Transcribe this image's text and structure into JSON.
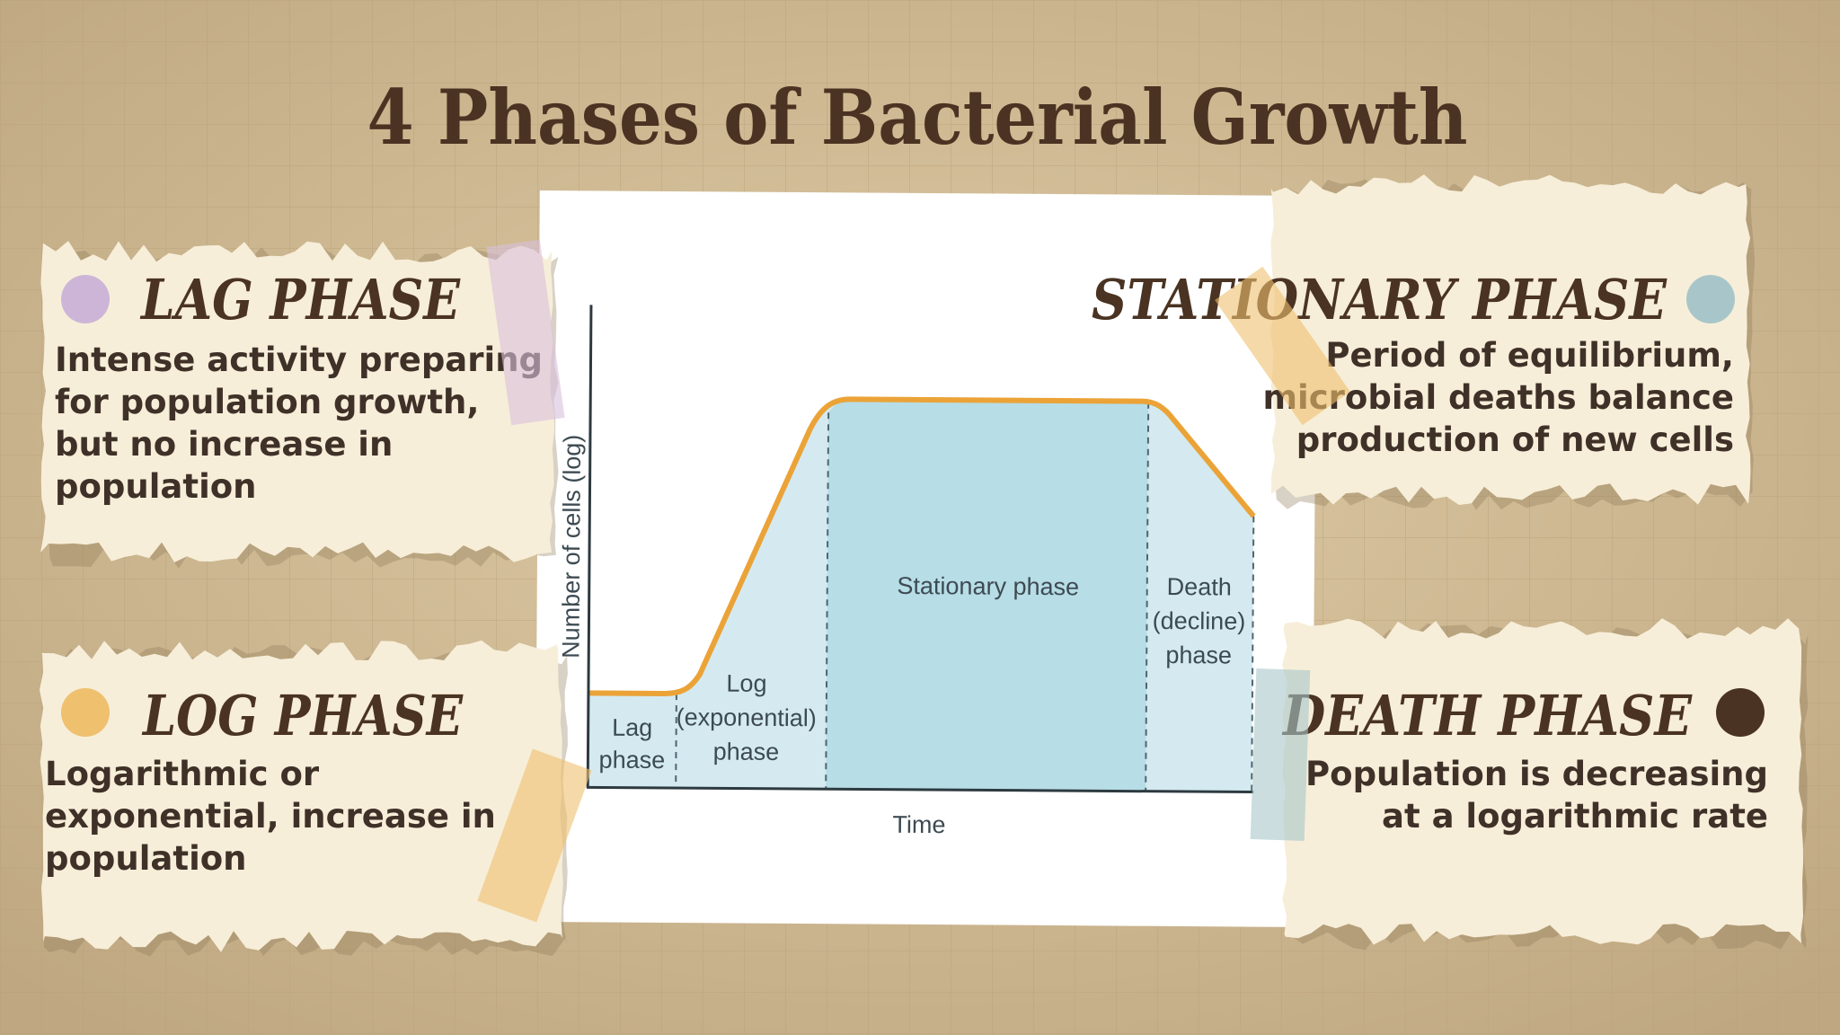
{
  "title": "4 Phases of Bacterial Growth",
  "cards": [
    {
      "heading": "LAG PHASE",
      "lines": [
        "Intense activity preparing",
        "for population growth,",
        "but no increase in",
        "population"
      ]
    },
    {
      "heading": "LOG PHASE",
      "lines": [
        "Logarithmic or",
        "exponential, increase in",
        "population"
      ]
    },
    {
      "heading": "STATIONARY PHASE",
      "lines": [
        "Period of equilibrium,",
        "microbial deaths balance",
        "production of new cells"
      ]
    },
    {
      "heading": "DEATH PHASE",
      "lines": [
        "Population is decreasing",
        "at a logarithmic rate"
      ]
    }
  ],
  "diagram": {
    "y_axis_label": "Number of cells (log)",
    "x_axis_label": "Time",
    "phases": [
      {
        "lines": [
          "Lag",
          "phase"
        ]
      },
      {
        "lines": [
          "Log",
          "(exponential)",
          "phase"
        ]
      },
      {
        "lines": [
          "Stationary phase"
        ]
      },
      {
        "lines": [
          "Death",
          "(decline)",
          "phase"
        ]
      }
    ]
  }
}
